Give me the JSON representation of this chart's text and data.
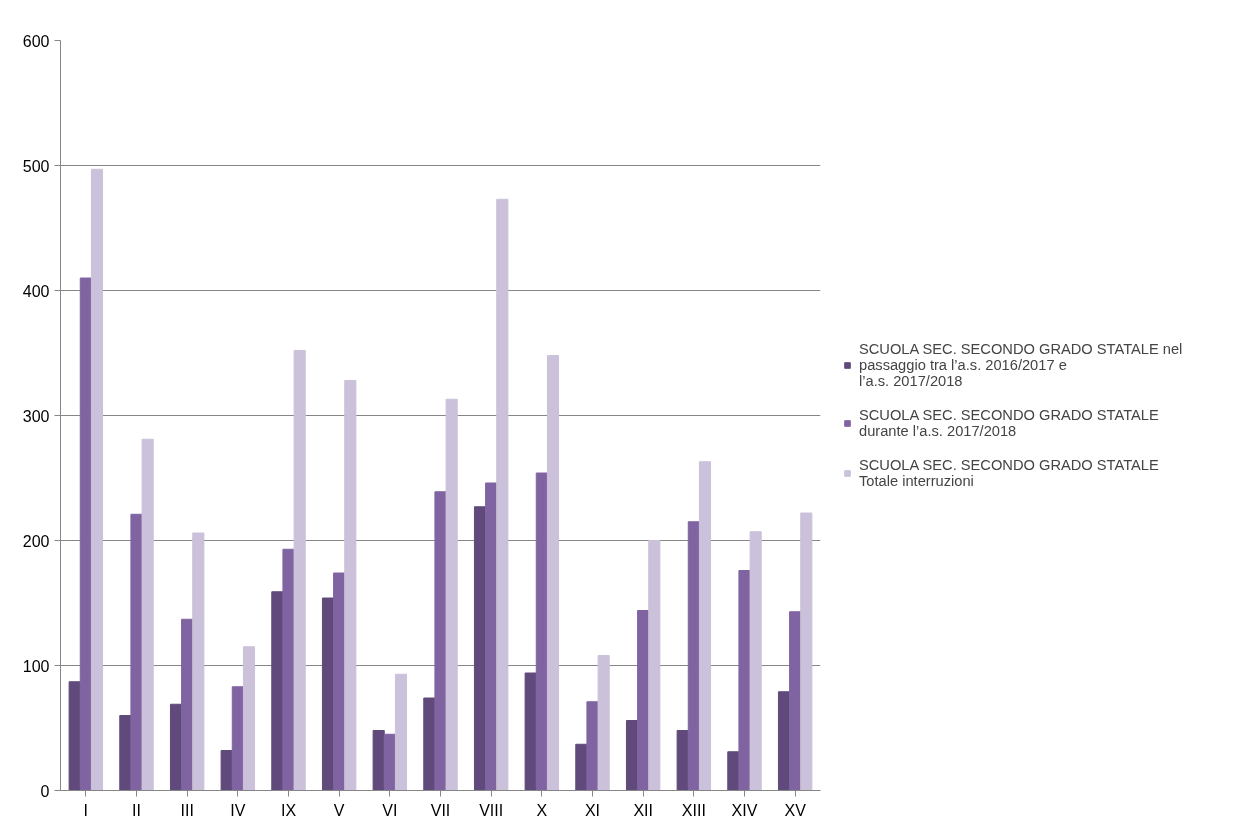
{
  "chart_data": {
    "type": "bar",
    "categories": [
      "I",
      "II",
      "III",
      "IV",
      "IX",
      "V",
      "VI",
      "VII",
      "VIII",
      "X",
      "XI",
      "XII",
      "XIII",
      "XIV",
      "XV"
    ],
    "series": [
      {
        "name": "SCUOLA SEC. SECONDO GRADO STATALE nel passaggio tra l’a.s. 2016/2017 e l’a.s. 2017/2018",
        "color": "#604a7b",
        "values": [
          87,
          60,
          69,
          32,
          159,
          154,
          48,
          74,
          227,
          94,
          37,
          56,
          48,
          31,
          79
        ]
      },
      {
        "name": "SCUOLA SEC. SECONDO GRADO STATALE durante l’a.s. 2017/2018",
        "color": "#8064a2",
        "values": [
          410,
          221,
          137,
          83,
          193,
          174,
          45,
          239,
          246,
          254,
          71,
          144,
          215,
          176,
          143
        ]
      },
      {
        "name": "SCUOLA SEC. SECONDO GRADO STATALE Totale interruzioni",
        "color": "#ccc1da",
        "values": [
          497,
          281,
          206,
          115,
          352,
          328,
          93,
          313,
          473,
          348,
          108,
          200,
          263,
          207,
          222
        ]
      }
    ],
    "ylim": [
      0,
      600
    ],
    "yticks": [
      0,
      100,
      200,
      300,
      400,
      500,
      600
    ],
    "grid": "y",
    "legend": "right"
  }
}
